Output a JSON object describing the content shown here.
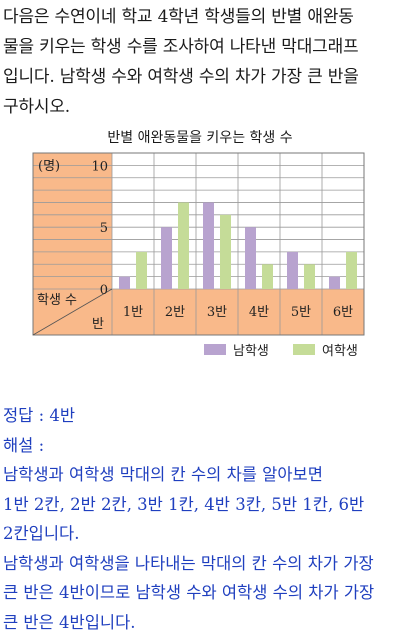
{
  "problem": {
    "lines": [
      "다음은 수연이네 학교 4학년 학생들의 반별 애완동",
      "물을 키우는 학생 수를 조사하여 나타낸 막대그래프",
      "입니다. 남학생 수와 여학생 수의 차가 가장 큰 반을",
      "구하시오."
    ]
  },
  "chart_data": {
    "type": "bar",
    "title": "반별 애완동물을 키우는 학생 수",
    "unit_label": "(명)",
    "xlabel": "반",
    "ylabel": "학생 수",
    "categories": [
      "1반",
      "2반",
      "3반",
      "4반",
      "5반",
      "6반"
    ],
    "y_ticks": [
      "0",
      "5",
      "10"
    ],
    "ylim": [
      0,
      11
    ],
    "grid": true,
    "legend_position": "bottom-right",
    "series": [
      {
        "name": "남학생",
        "color": "#b8a3cf",
        "values": [
          1,
          5,
          7,
          5,
          3,
          1
        ]
      },
      {
        "name": "여학생",
        "color": "#c5dc98",
        "values": [
          3,
          7,
          6,
          2,
          2,
          3
        ]
      }
    ],
    "colors": {
      "axis_panel": "#f9b98a",
      "grid": "#9a9a9a"
    }
  },
  "answer": {
    "result": "정답 : 4반",
    "explanation_label": "해설 :",
    "lines": [
      "남학생과 여학생 막대의 칸 수의 차를 알아보면",
      "1반 2칸, 2반 2칸, 3반 1칸, 4반 3칸, 5반 1칸, 6반",
      "2칸입니다.",
      "남학생과 여학생을 나타내는 막대의 칸 수의 차가 가장",
      "큰 반은 4반이므로 남학생 수와 여학생 수의 차가 가장",
      "큰 반은 4반입니다."
    ]
  }
}
